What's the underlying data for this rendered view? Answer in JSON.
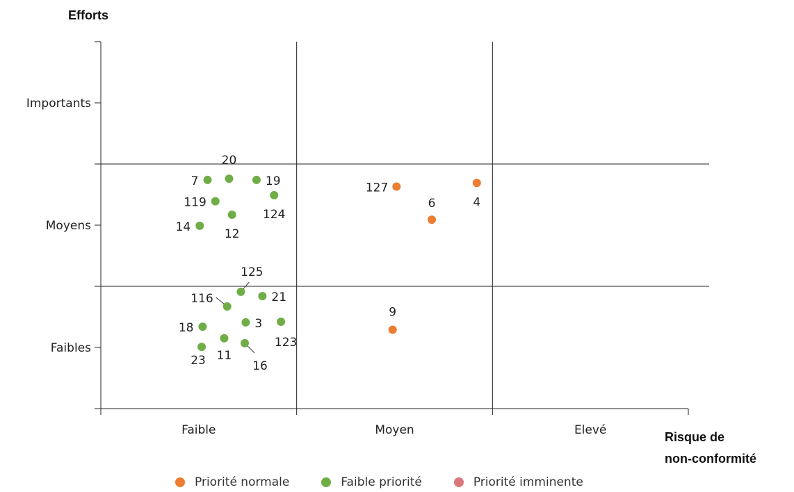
{
  "chart_data": {
    "type": "scatter",
    "ylabel": "Efforts",
    "xlabel": [
      "Risque de",
      "non-conformité"
    ],
    "x_categories": [
      "Faible",
      "Moyen",
      "Elevé"
    ],
    "y_categories": [
      "Faibles",
      "Moyens",
      "Importants"
    ],
    "xlim": [
      0,
      6
    ],
    "ylim": [
      0,
      6
    ],
    "series": [
      {
        "name": "Priorité normale",
        "color": "#ED7D31",
        "points": [
          {
            "label": "127",
            "x": 3.02,
            "y": 3.63
          },
          {
            "label": "6",
            "x": 3.38,
            "y": 3.09
          },
          {
            "label": "4",
            "x": 3.84,
            "y": 3.69
          },
          {
            "label": "9",
            "x": 2.98,
            "y": 1.29
          }
        ]
      },
      {
        "name": "Faible priorité",
        "color": "#70AD47",
        "points": [
          {
            "label": "20",
            "x": 1.31,
            "y": 3.76
          },
          {
            "label": "7",
            "x": 1.09,
            "y": 3.74
          },
          {
            "label": "19",
            "x": 1.59,
            "y": 3.74
          },
          {
            "label": "119",
            "x": 1.17,
            "y": 3.39
          },
          {
            "label": "124",
            "x": 1.77,
            "y": 3.49
          },
          {
            "label": "12",
            "x": 1.34,
            "y": 3.17
          },
          {
            "label": "14",
            "x": 1.01,
            "y": 2.99
          },
          {
            "label": "125",
            "x": 1.43,
            "y": 1.91
          },
          {
            "label": "116",
            "x": 1.29,
            "y": 1.67
          },
          {
            "label": "21",
            "x": 1.65,
            "y": 1.84
          },
          {
            "label": "18",
            "x": 1.04,
            "y": 1.34
          },
          {
            "label": "3",
            "x": 1.48,
            "y": 1.41
          },
          {
            "label": "123",
            "x": 1.84,
            "y": 1.42
          },
          {
            "label": "11",
            "x": 1.26,
            "y": 1.15
          },
          {
            "label": "23",
            "x": 1.03,
            "y": 1.01
          },
          {
            "label": "16",
            "x": 1.47,
            "y": 1.07
          }
        ]
      },
      {
        "name": "Priorité imminente",
        "color": "#D9777A",
        "points": []
      }
    ]
  }
}
